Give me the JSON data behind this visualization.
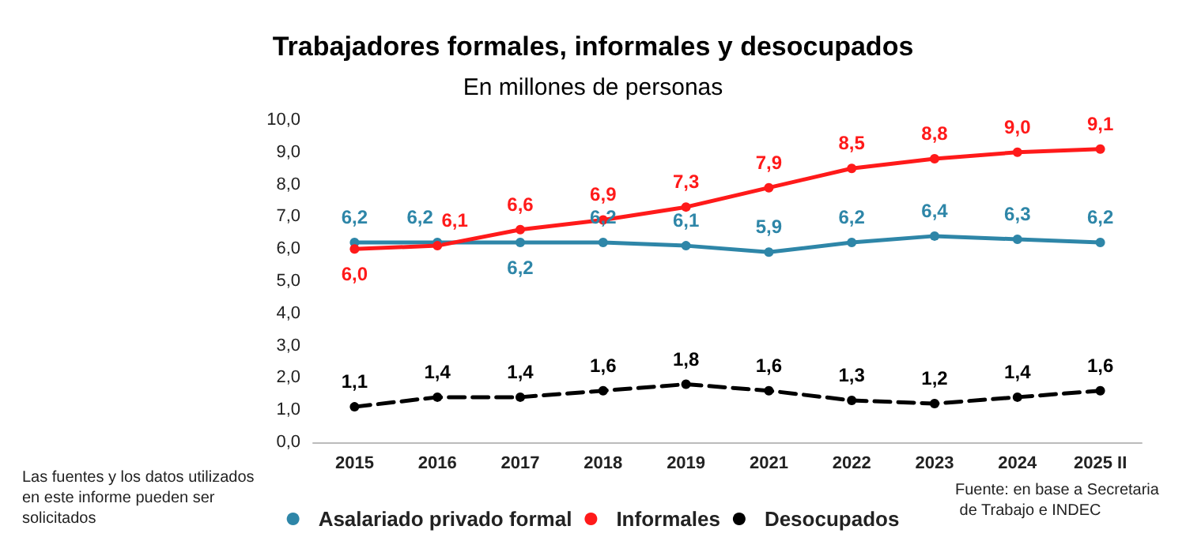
{
  "chart_data": {
    "type": "line",
    "title": "Trabajadores formales, informales y desocupados",
    "subtitle": "En millones de personas",
    "categories": [
      "2015",
      "2016",
      "2017",
      "2018",
      "2019",
      "2021",
      "2022",
      "2023",
      "2024",
      "2025 II"
    ],
    "series": [
      {
        "name": "Asalariado privado formal",
        "color": "#2e86a8",
        "line_style": "solid",
        "values": [
          6.2,
          6.2,
          6.2,
          6.2,
          6.1,
          5.9,
          6.2,
          6.4,
          6.3,
          6.2
        ],
        "value_labels": [
          "6,2",
          "6,2",
          "6,2",
          "6,2",
          "6,1",
          "5,9",
          "6,2",
          "6,4",
          "6,3",
          "6,2"
        ]
      },
      {
        "name": "Informales",
        "color": "#ff1a1a",
        "line_style": "solid",
        "values": [
          6.0,
          6.1,
          6.6,
          6.9,
          7.3,
          7.9,
          8.5,
          8.8,
          9.0,
          9.1
        ],
        "value_labels": [
          "6,0",
          "6,1",
          "6,6",
          "6,9",
          "7,3",
          "7,9",
          "8,5",
          "8,8",
          "9,0",
          "9,1"
        ]
      },
      {
        "name": "Desocupados",
        "color": "#000000",
        "line_style": "dashed",
        "values": [
          1.1,
          1.4,
          1.4,
          1.6,
          1.8,
          1.6,
          1.3,
          1.2,
          1.4,
          1.6
        ],
        "value_labels": [
          "1,1",
          "1,4",
          "1,4",
          "1,6",
          "1,8",
          "1,6",
          "1,3",
          "1,2",
          "1,4",
          "1,6"
        ]
      }
    ],
    "ylim": [
      0,
      10
    ],
    "yticks": [
      {
        "value": 0,
        "label": "0,0"
      },
      {
        "value": 1,
        "label": "1,0"
      },
      {
        "value": 2,
        "label": "2,0"
      },
      {
        "value": 3,
        "label": "3,0"
      },
      {
        "value": 4,
        "label": "4,0"
      },
      {
        "value": 5,
        "label": "5,0"
      },
      {
        "value": 6,
        "label": "6,0"
      },
      {
        "value": 7,
        "label": "7,0"
      },
      {
        "value": 8,
        "label": "8,0"
      },
      {
        "value": 9,
        "label": "9,0"
      },
      {
        "value": 10,
        "label": "10,0"
      }
    ],
    "grid": false,
    "legend": "bottom",
    "marker": "circle",
    "annotations": [
      "Las fuentes y los datos utilizados en este informe pueden ser solicitados",
      "Fuente: en base a Secretaria de Trabajo e INDEC"
    ]
  }
}
